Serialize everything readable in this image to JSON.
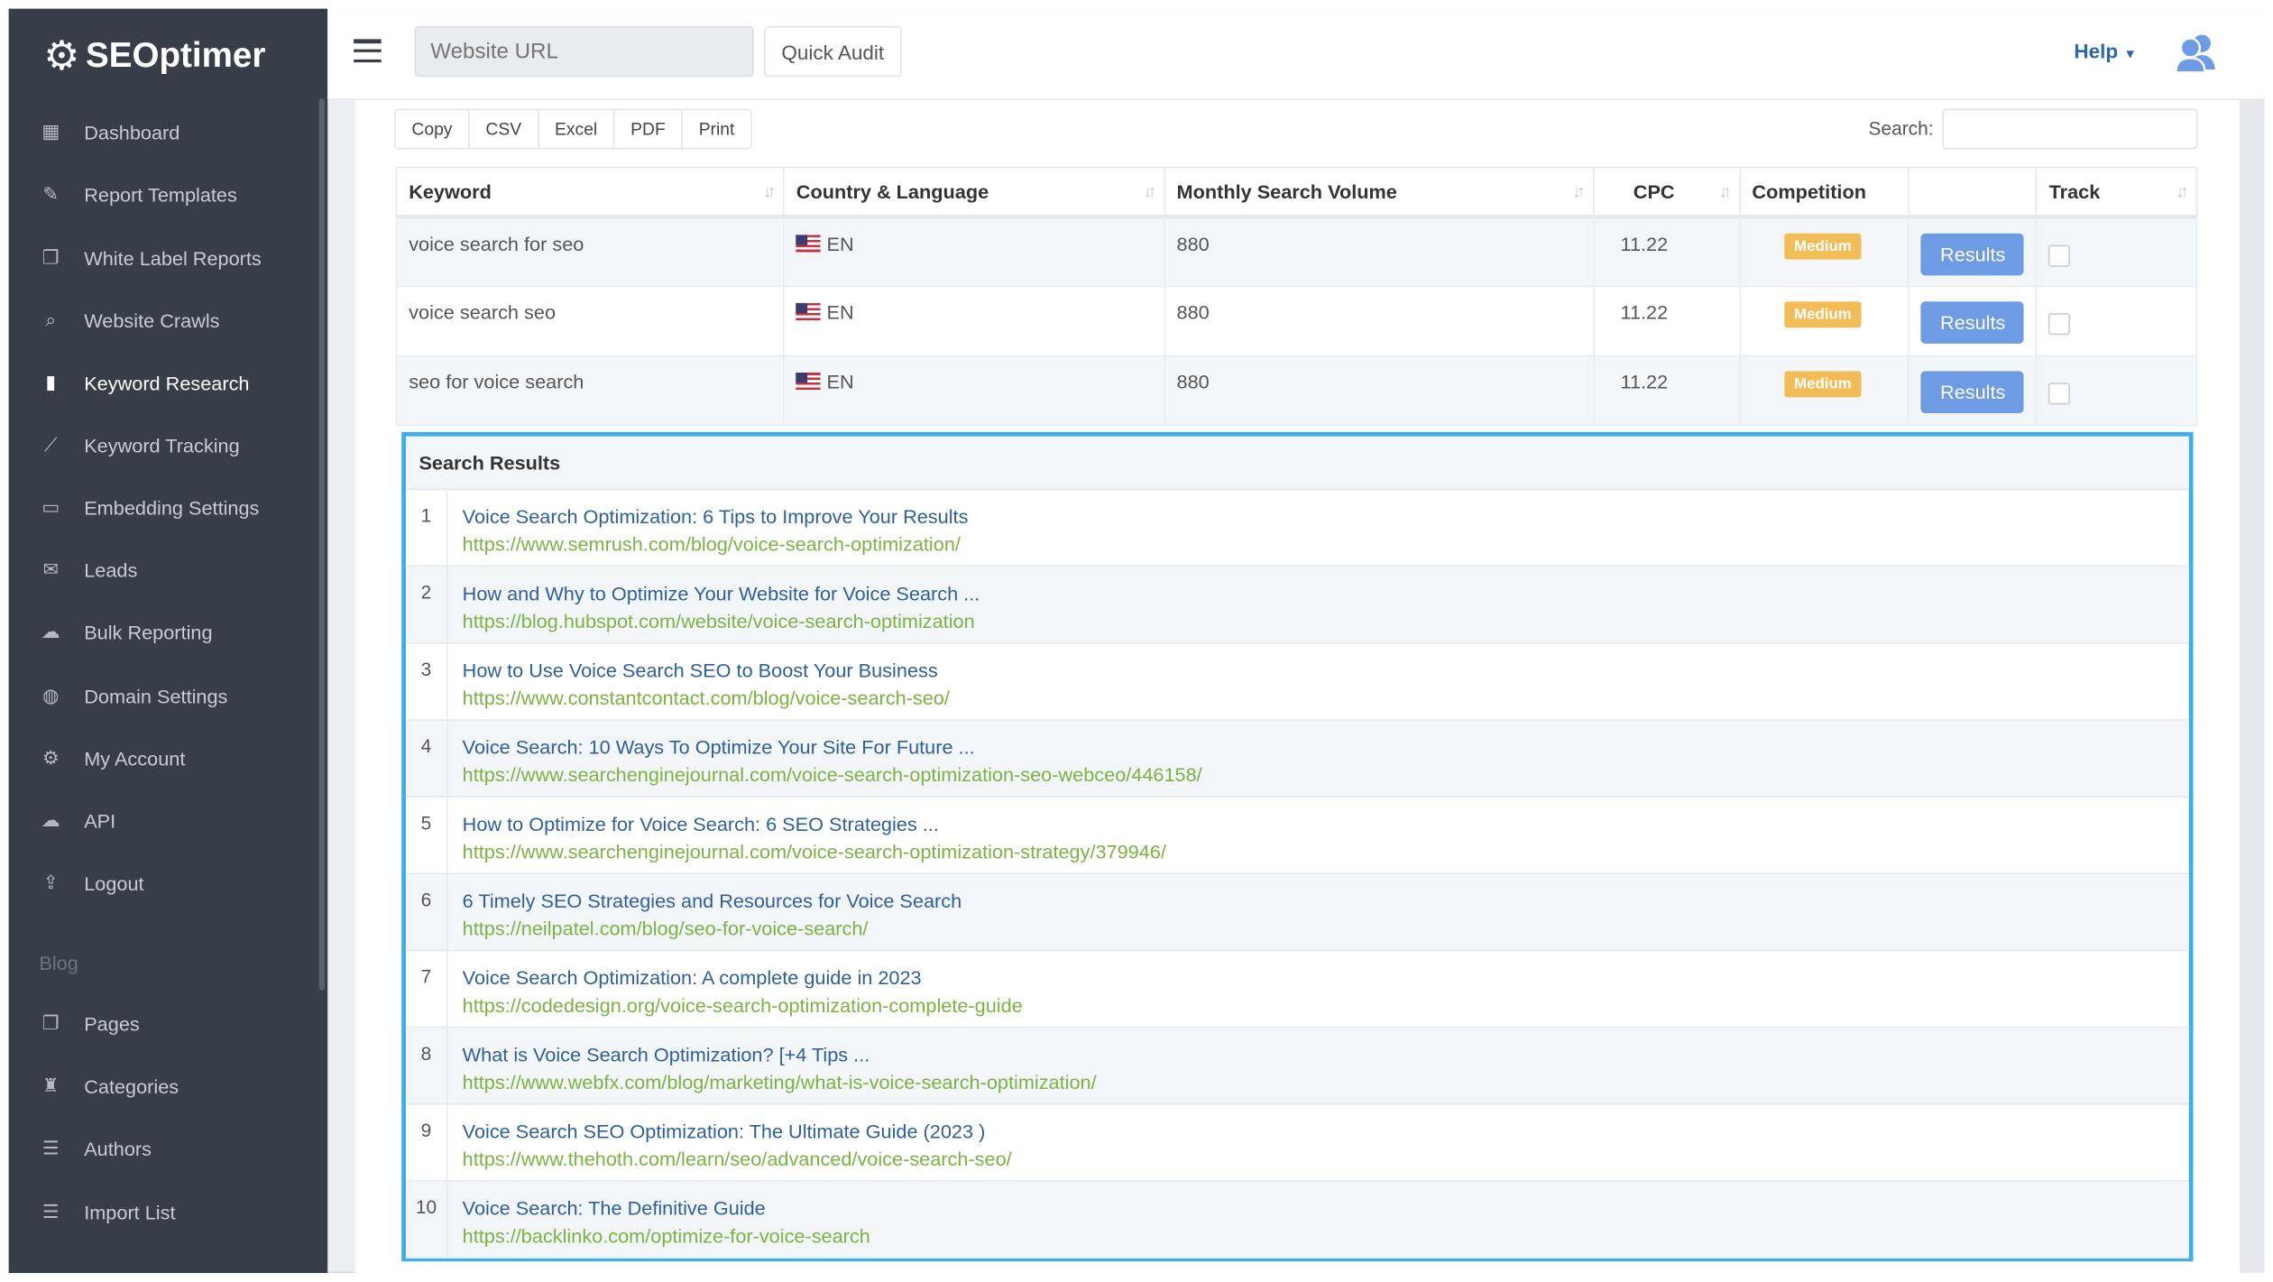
{
  "brand": "SEOptimer",
  "header": {
    "url_placeholder": "Website URL",
    "quick_audit": "Quick Audit",
    "help": "Help"
  },
  "sidebar": {
    "items": [
      {
        "label": "Dashboard",
        "icon": "dashboard-icon"
      },
      {
        "label": "Report Templates",
        "icon": "edit-icon"
      },
      {
        "label": "White Label Reports",
        "icon": "files-icon"
      },
      {
        "label": "Website Crawls",
        "icon": "search-icon"
      },
      {
        "label": "Keyword Research",
        "icon": "bar-chart-icon",
        "active": true
      },
      {
        "label": "Keyword Tracking",
        "icon": "tracking-icon"
      },
      {
        "label": "Embedding Settings",
        "icon": "embed-icon"
      },
      {
        "label": "Leads",
        "icon": "envelope-icon"
      },
      {
        "label": "Bulk Reporting",
        "icon": "cloud-icon"
      },
      {
        "label": "Domain Settings",
        "icon": "globe-icon"
      },
      {
        "label": "My Account",
        "icon": "gear-icon"
      },
      {
        "label": "API",
        "icon": "cloud-icon"
      },
      {
        "label": "Logout",
        "icon": "logout-icon"
      }
    ],
    "blog_label": "Blog",
    "blog_items": [
      {
        "label": "Pages",
        "icon": "files-icon"
      },
      {
        "label": "Categories",
        "icon": "bookmark-icon"
      },
      {
        "label": "Authors",
        "icon": "list-icon"
      },
      {
        "label": "Import List",
        "icon": "list-icon"
      }
    ]
  },
  "toolbar": {
    "buttons": [
      "Copy",
      "CSV",
      "Excel",
      "PDF",
      "Print"
    ],
    "search_label": "Search:"
  },
  "table": {
    "headers": [
      "Keyword",
      "Country & Language",
      "Monthly Search Volume",
      "CPC",
      "Competition",
      "",
      "Track"
    ],
    "rows": [
      {
        "keyword": "voice search for seo",
        "lang": "EN",
        "volume": "880",
        "cpc": "11.22",
        "competition": "Medium",
        "action": "Results"
      },
      {
        "keyword": "voice search seo",
        "lang": "EN",
        "volume": "880",
        "cpc": "11.22",
        "competition": "Medium",
        "action": "Results"
      },
      {
        "keyword": "seo for voice search",
        "lang": "EN",
        "volume": "880",
        "cpc": "11.22",
        "competition": "Medium",
        "action": "Results"
      }
    ]
  },
  "search_results": {
    "title": "Search Results",
    "items": [
      {
        "n": "1",
        "title": "Voice Search Optimization: 6 Tips to Improve Your Results",
        "url": "https://www.semrush.com/blog/voice-search-optimization/"
      },
      {
        "n": "2",
        "title": "How and Why to Optimize Your Website for Voice Search ...",
        "url": "https://blog.hubspot.com/website/voice-search-optimization"
      },
      {
        "n": "3",
        "title": "How to Use Voice Search SEO to Boost Your Business",
        "url": "https://www.constantcontact.com/blog/voice-search-seo/"
      },
      {
        "n": "4",
        "title": "Voice Search: 10 Ways To Optimize Your Site For Future ...",
        "url": "https://www.searchenginejournal.com/voice-search-optimization-seo-webceo/446158/"
      },
      {
        "n": "5",
        "title": "How to Optimize for Voice Search: 6 SEO Strategies ...",
        "url": "https://www.searchenginejournal.com/voice-search-optimization-strategy/379946/"
      },
      {
        "n": "6",
        "title": "6 Timely SEO Strategies and Resources for Voice Search",
        "url": "https://neilpatel.com/blog/seo-for-voice-search/"
      },
      {
        "n": "7",
        "title": "Voice Search Optimization: A complete guide in 2023",
        "url": "https://codedesign.org/voice-search-optimization-complete-guide"
      },
      {
        "n": "8",
        "title": "What is Voice Search Optimization? [+4 Tips ...",
        "url": "https://www.webfx.com/blog/marketing/what-is-voice-search-optimization/"
      },
      {
        "n": "9",
        "title": "Voice Search SEO Optimization: The Ultimate Guide (2023 )",
        "url": "https://www.thehoth.com/learn/seo/advanced/voice-search-seo/"
      },
      {
        "n": "10",
        "title": "Voice Search: The Definitive Guide",
        "url": "https://backlinko.com/optimize-for-voice-search"
      }
    ]
  },
  "colors": {
    "sidebar": "#383e48",
    "accent": "#3daee9",
    "button": "#6d9ce5",
    "badge": "#f2bc56",
    "link": "#2d5fa0",
    "url": "#7bb342"
  }
}
